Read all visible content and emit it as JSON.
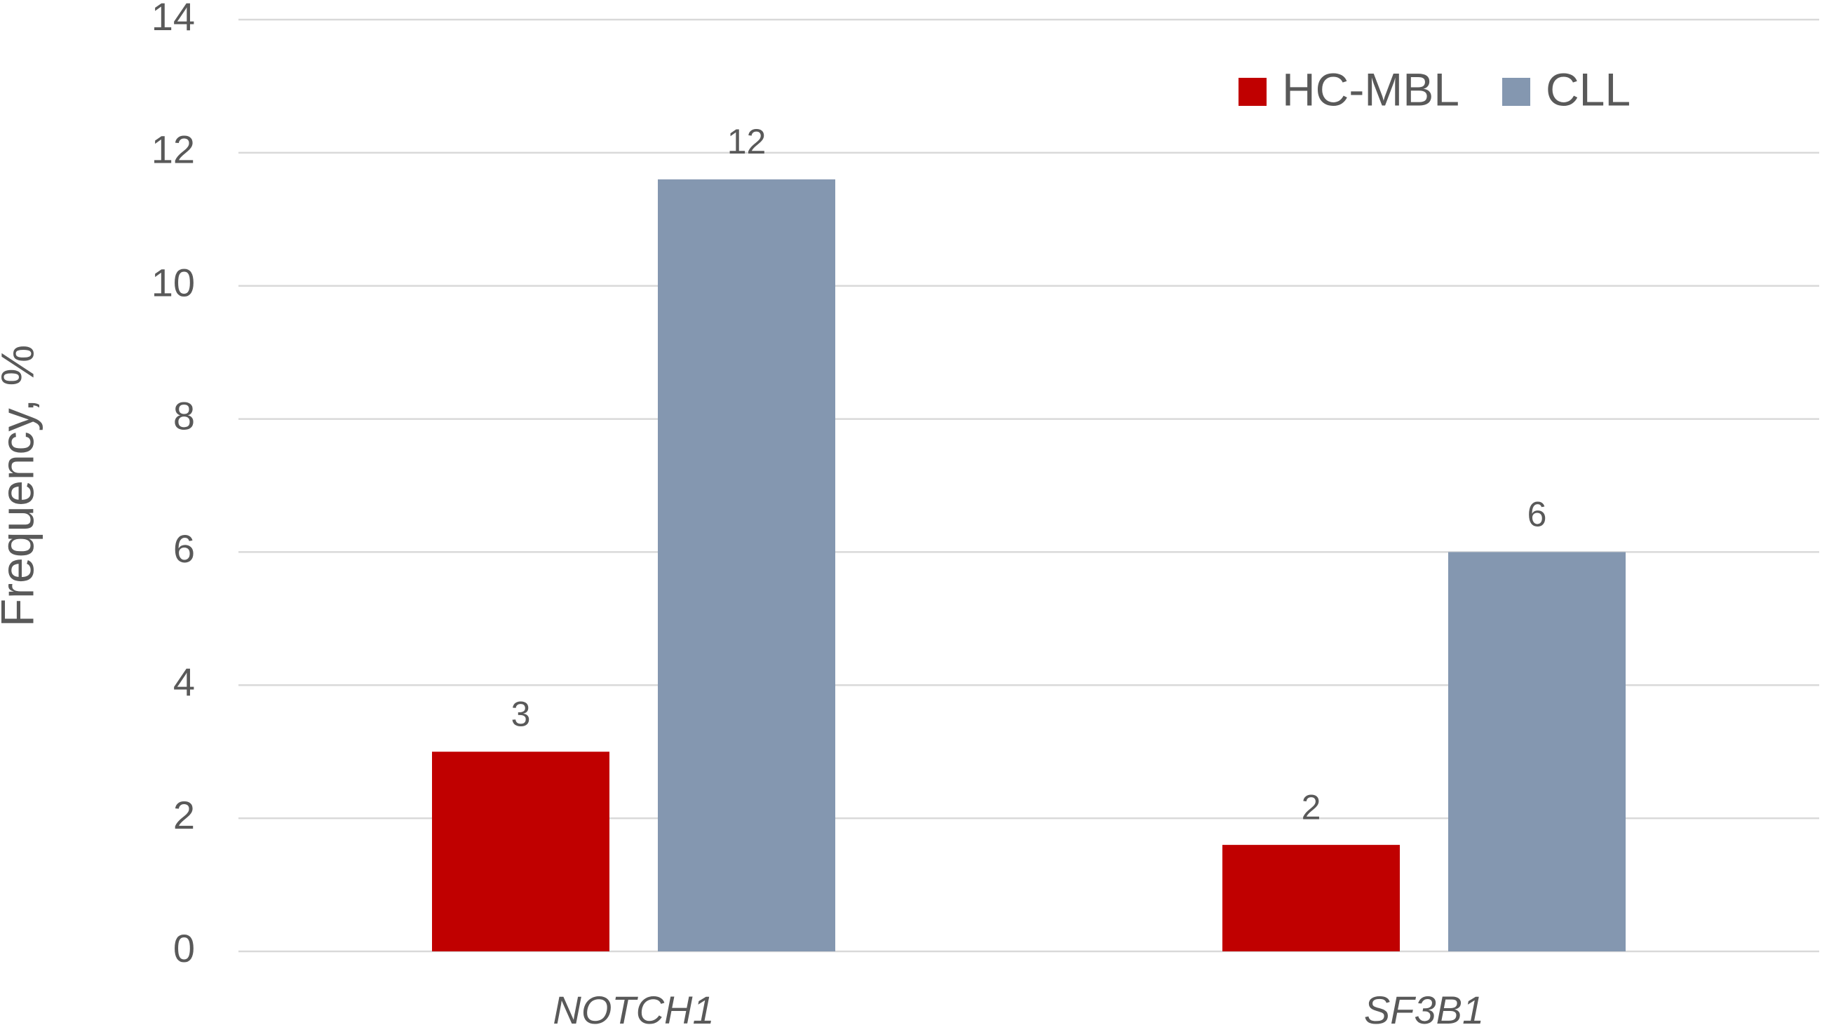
{
  "chart_data": {
    "type": "bar",
    "y_label": "Frequency, %",
    "categories": [
      "NOTCH1",
      "SF3B1"
    ],
    "series": [
      {
        "name": "HC-MBL",
        "color": "#c00000",
        "values": [
          3,
          1.6
        ],
        "value_labels": [
          "3",
          "2"
        ]
      },
      {
        "name": "CLL",
        "color": "#8497b0",
        "values": [
          11.6,
          6
        ],
        "value_labels": [
          "12",
          "6"
        ]
      }
    ],
    "ylim": [
      0,
      14
    ],
    "yticks": [
      0,
      2,
      4,
      6,
      8,
      10,
      12,
      14
    ],
    "grid": true,
    "legend": "top-right"
  }
}
